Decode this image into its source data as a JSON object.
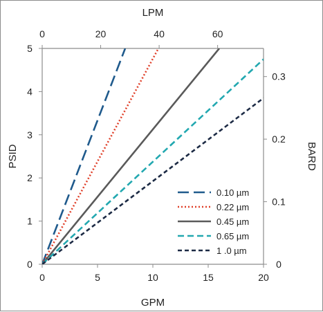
{
  "chart_data": {
    "type": "line",
    "axes": {
      "bottom": {
        "label": "GPM",
        "min": 0,
        "max": 20,
        "ticks": [
          0,
          5,
          10,
          15,
          20
        ]
      },
      "top": {
        "label": "LPM",
        "min": 0,
        "max": 75.7,
        "ticks": [
          0,
          20,
          40,
          60
        ]
      },
      "left": {
        "label": "PSID",
        "min": 0,
        "max": 5,
        "ticks": [
          0,
          1,
          2,
          3,
          4,
          5
        ]
      },
      "right": {
        "label": "BARD",
        "min": 0,
        "max": 0.345,
        "ticks": [
          0,
          0.1,
          0.2,
          0.3
        ]
      }
    },
    "grid": false,
    "legend_position": "bottom-right",
    "series": [
      {
        "name": "0.10 µm",
        "x": [
          0,
          7.5
        ],
        "y": [
          0,
          5.0
        ],
        "color": "#1f5a8c",
        "dash": "long-dash"
      },
      {
        "name": "0.22 µm",
        "x": [
          0,
          10.5
        ],
        "y": [
          0,
          5.0
        ],
        "color": "#e0402a",
        "dash": "dot"
      },
      {
        "name": "0.45 µm",
        "x": [
          0,
          16.0
        ],
        "y": [
          0,
          5.0
        ],
        "color": "#5a5a5a",
        "dash": "solid"
      },
      {
        "name": "0.65 µm",
        "x": [
          0,
          20.0
        ],
        "y": [
          0,
          4.75
        ],
        "color": "#22a8b0",
        "dash": "dash"
      },
      {
        "name": "1 .0 µm",
        "x": [
          0,
          20.0
        ],
        "y": [
          0,
          3.85
        ],
        "color": "#1c2a44",
        "dash": "short-dash"
      }
    ]
  }
}
